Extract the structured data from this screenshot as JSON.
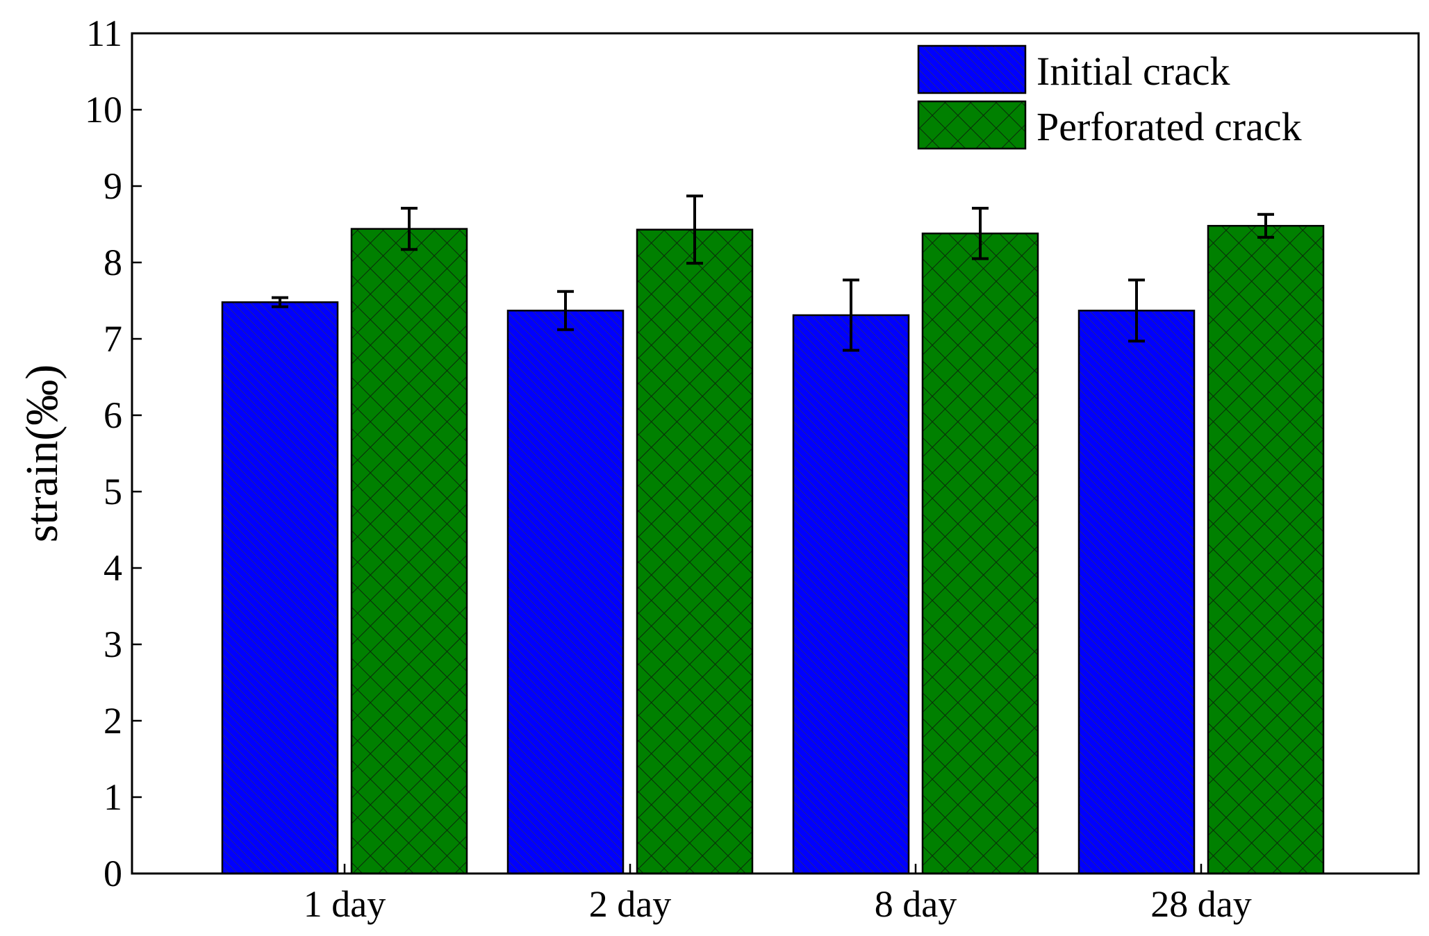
{
  "chart_data": {
    "type": "bar",
    "categories": [
      "1 day",
      "2 day",
      "8 day",
      "28 day"
    ],
    "series": [
      {
        "name": "Initial crack",
        "values": [
          7.48,
          7.37,
          7.31,
          7.37
        ],
        "errors": [
          0.06,
          0.25,
          0.46,
          0.4
        ],
        "color": "#0000ff",
        "pattern": "diagonal-hatch"
      },
      {
        "name": "Perforated crack",
        "values": [
          8.44,
          8.43,
          8.38,
          8.48
        ],
        "errors": [
          0.27,
          0.44,
          0.33,
          0.15
        ],
        "color": "#008000",
        "pattern": "cross-hatch"
      }
    ],
    "xlabel": "",
    "ylabel": "strain(‰)",
    "ylim": [
      0,
      11
    ],
    "yticks": [
      "0",
      "1",
      "2",
      "3",
      "4",
      "5",
      "6",
      "7",
      "8",
      "9",
      "10",
      "11"
    ],
    "grid": false,
    "legend": "top-right"
  }
}
